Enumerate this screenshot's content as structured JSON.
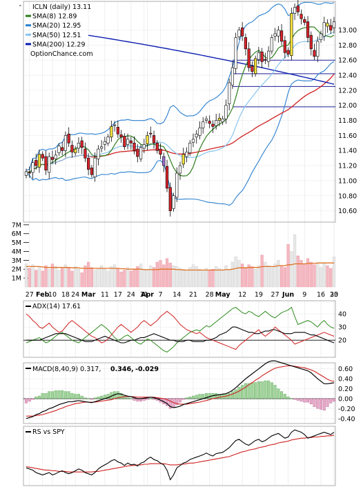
{
  "chart_data": {
    "type": "candlestick",
    "price_panel": {
      "legend": [
        {
          "label": "ICLN (daily) 13.11",
          "color": "#000000"
        },
        {
          "label": "SMA(8) 12.89",
          "color": "#2e7d1e"
        },
        {
          "label": "SMA(20) 12.95",
          "color": "#2a7fd0"
        },
        {
          "label": "SMA(50) 12.51",
          "color": "#86c4ee"
        },
        {
          "label": "SMA(200) 12.29",
          "color": "#0b1db0"
        }
      ],
      "watermark": "OptionChance.com",
      "y_ticks": [
        "13.00",
        "12.80",
        "12.60",
        "12.40",
        "12.20",
        "12.00",
        "11.80",
        "11.60",
        "11.40",
        "11.20",
        "11.00",
        "10.80",
        "10.60"
      ],
      "ylim": [
        10.45,
        13.38
      ],
      "close_prices": [
        11.12,
        11.1,
        11.24,
        11.2,
        11.35,
        11.3,
        11.14,
        11.32,
        11.28,
        11.34,
        11.46,
        11.4,
        11.6,
        11.5,
        11.38,
        11.42,
        11.5,
        11.44,
        11.3,
        11.15,
        11.08,
        11.3,
        11.42,
        11.45,
        11.52,
        11.58,
        11.72,
        11.74,
        11.62,
        11.58,
        11.45,
        11.55,
        11.5,
        11.4,
        11.32,
        11.44,
        11.48,
        11.6,
        11.62,
        11.5,
        11.4,
        11.35,
        11.2,
        10.9,
        10.6,
        10.8,
        11.1,
        11.2,
        11.35,
        11.38,
        11.5,
        11.55,
        11.62,
        11.7,
        11.78,
        11.82,
        11.76,
        11.72,
        11.8,
        11.8,
        11.82,
        12.0,
        12.3,
        12.5,
        12.9,
        13.0,
        12.92,
        12.75,
        12.5,
        12.45,
        12.62,
        12.7,
        12.58,
        12.6,
        12.72,
        12.9,
        12.95,
        13.0,
        12.85,
        12.7,
        12.68,
        13.22,
        13.3,
        13.24,
        13.15,
        13.1,
        12.9,
        12.75,
        12.65,
        12.85,
        12.95,
        13.1,
        13.05,
        13.0,
        13.11
      ],
      "horizontal_lines": [
        12.6,
        12.42,
        12.25,
        11.98
      ]
    },
    "volume_panel": {
      "y_ticks": [
        "7M",
        "6M",
        "5M",
        "4M",
        "3M",
        "2M",
        "1M"
      ],
      "ylim": [
        0,
        7.3
      ],
      "volume_millions": [
        2.6,
        2.1,
        2.5,
        1.9,
        2.2,
        1.8,
        2.4,
        2.0,
        2.6,
        2.3,
        1.9,
        2.1,
        2.5,
        2.2,
        1.8,
        2.3,
        2.0,
        1.6,
        2.4,
        2.8,
        2.2,
        1.9,
        2.1,
        2.4,
        2.0,
        1.8,
        2.3,
        2.5,
        2.1,
        1.7,
        1.9,
        2.2,
        1.8,
        2.0,
        2.3,
        2.6,
        2.0,
        1.9,
        2.4,
        2.2,
        2.8,
        3.0,
        2.5,
        3.2,
        2.7,
        2.4,
        2.3,
        2.1,
        2.0,
        1.9,
        2.2,
        2.5,
        2.3,
        2.0,
        1.8,
        2.1,
        1.9,
        2.0,
        2.3,
        2.1,
        1.8,
        2.4,
        2.0,
        2.8,
        3.4,
        3.0,
        2.6,
        2.2,
        2.5,
        2.3,
        2.0,
        2.4,
        3.6,
        2.8,
        2.4,
        2.2,
        2.6,
        3.0,
        2.4,
        2.2,
        4.8,
        4.0,
        5.9,
        3.5,
        3.0,
        2.6,
        3.2,
        2.8,
        2.5,
        2.7,
        2.2,
        2.6,
        2.4,
        2.1,
        3.4
      ],
      "volume_sma": [
        2.3,
        2.3,
        2.3,
        2.3,
        2.3,
        2.25,
        2.2,
        2.2,
        2.2,
        2.2,
        2.2,
        2.2,
        2.2,
        2.2,
        2.15,
        2.15,
        2.15,
        2.1,
        2.1,
        2.1,
        2.1,
        2.1,
        2.1,
        2.1,
        2.1,
        2.1,
        2.1,
        2.1,
        2.1,
        2.05,
        2.05,
        2.0,
        2.0,
        2.0,
        2.0,
        2.0,
        1.95,
        1.95,
        1.95,
        1.95,
        1.95,
        2.0,
        2.0,
        2.0,
        2.0,
        2.0,
        1.95,
        1.95,
        1.9,
        1.9,
        1.9,
        1.9,
        1.9,
        1.9,
        1.9,
        1.9,
        1.9,
        1.9,
        1.9,
        1.9,
        1.9,
        1.95,
        1.95,
        2.0,
        2.1,
        2.15,
        2.15,
        2.15,
        2.2,
        2.2,
        2.2,
        2.2,
        2.3,
        2.3,
        2.3,
        2.3,
        2.3,
        2.4,
        2.4,
        2.4,
        2.5,
        2.5,
        2.6,
        2.6,
        2.6,
        2.6,
        2.65,
        2.65,
        2.65,
        2.7,
        2.7,
        2.7,
        2.7,
        2.7,
        2.7
      ]
    },
    "x_ticks": [
      {
        "label": "27",
        "bar": 1
      },
      {
        "label": "Feb",
        "bar": 5,
        "bold": true
      },
      {
        "label": "10",
        "bar": 8
      },
      {
        "label": "18",
        "bar": 12
      },
      {
        "label": "24",
        "bar": 15
      },
      {
        "label": "Mar",
        "bar": 19,
        "bold": true
      },
      {
        "label": "11",
        "bar": 24
      },
      {
        "label": "17",
        "bar": 28
      },
      {
        "label": "24",
        "bar": 32
      },
      {
        "label": "31",
        "bar": 36
      },
      {
        "label": "Apr",
        "bar": 37,
        "bold": true
      },
      {
        "label": "7",
        "bar": 41
      },
      {
        "label": "14",
        "bar": 46
      },
      {
        "label": "21",
        "bar": 51
      },
      {
        "label": "28",
        "bar": 56
      },
      {
        "label": "May",
        "bar": 60,
        "bold": true
      },
      {
        "label": "12",
        "bar": 66
      },
      {
        "label": "19",
        "bar": 71
      },
      {
        "label": "27",
        "bar": 76
      },
      {
        "label": "Jun",
        "bar": 80,
        "bold": true
      },
      {
        "label": "9",
        "bar": 85
      },
      {
        "label": "16",
        "bar": 90
      },
      {
        "label": "23",
        "bar": 95
      },
      {
        "label": "30",
        "bar": 100
      }
    ],
    "adx_panel": {
      "legend": [
        {
          "label": "ADX(14) 17.61",
          "color": "#000000"
        }
      ],
      "y_ticks": [
        "40",
        "30",
        "20"
      ],
      "ylim": [
        7,
        50
      ],
      "adx": [
        20,
        20,
        20,
        20,
        20,
        21,
        22,
        23,
        24,
        25,
        25,
        25,
        25,
        24,
        23,
        22,
        21,
        20,
        19,
        19,
        19,
        20,
        21,
        22,
        23,
        22,
        21,
        20,
        19,
        18,
        18,
        19,
        20,
        20,
        21,
        22,
        22,
        23,
        24,
        25,
        24,
        23,
        22,
        21,
        20,
        20,
        19,
        19,
        19,
        20,
        20,
        19,
        19,
        19,
        19,
        20,
        20,
        21,
        22,
        24,
        25,
        26,
        28,
        30,
        30,
        29,
        28,
        27,
        26,
        26,
        25,
        25,
        26,
        27,
        27,
        28,
        28,
        27,
        26,
        25,
        25,
        25,
        26,
        26,
        26,
        26,
        25,
        24,
        24,
        23,
        22,
        21,
        20,
        19,
        18
      ],
      "plus_di": [
        18,
        19,
        20,
        21,
        22,
        20,
        18,
        19,
        21,
        23,
        25,
        26,
        24,
        22,
        20,
        19,
        18,
        20,
        22,
        24,
        26,
        28,
        30,
        32,
        30,
        28,
        25,
        22,
        20,
        21,
        23,
        24,
        22,
        20,
        18,
        17,
        19,
        21,
        20,
        18,
        16,
        14,
        12,
        11,
        13,
        15,
        18,
        20,
        22,
        24,
        26,
        27,
        28,
        27,
        29,
        31,
        30,
        32,
        34,
        36,
        38,
        40,
        42,
        44,
        45,
        43,
        41,
        40,
        42,
        41,
        39,
        38,
        40,
        42,
        40,
        38,
        37,
        39,
        41,
        42,
        43,
        45,
        38,
        32,
        33,
        34,
        35,
        34,
        32,
        30,
        33,
        35,
        32,
        30,
        29
      ],
      "minus_di": [
        40,
        38,
        35,
        33,
        30,
        29,
        31,
        33,
        30,
        28,
        26,
        27,
        30,
        33,
        35,
        33,
        31,
        29,
        27,
        25,
        23,
        22,
        20,
        18,
        19,
        21,
        24,
        27,
        30,
        32,
        30,
        28,
        26,
        28,
        30,
        33,
        35,
        33,
        31,
        33,
        35,
        38,
        40,
        42,
        40,
        38,
        35,
        32,
        30,
        28,
        27,
        26,
        25,
        26,
        24,
        22,
        21,
        20,
        19,
        18,
        17,
        16,
        15,
        14,
        13,
        16,
        18,
        20,
        22,
        24,
        26,
        28,
        25,
        23,
        25,
        27,
        30,
        28,
        26,
        24,
        22,
        20,
        17,
        18,
        19,
        20,
        21,
        22,
        23,
        24,
        25,
        26,
        25,
        24,
        23
      ]
    },
    "macd_panel": {
      "legend": [
        {
          "label": "MACD(8,40,9) 0.317,",
          "color": "#000000"
        },
        {
          "label": "0.346,",
          "color": "#d10000"
        },
        {
          "label": "-0.029",
          "color": "#1a3ecf"
        }
      ],
      "y_ticks": [
        "0.60",
        "0.40",
        "0.20",
        "0.00",
        "-0.20",
        "-0.40"
      ],
      "ylim": [
        -0.5,
        0.72
      ],
      "macd": [
        -0.4,
        -0.38,
        -0.36,
        -0.32,
        -0.3,
        -0.26,
        -0.24,
        -0.2,
        -0.18,
        -0.15,
        -0.12,
        -0.1,
        -0.08,
        -0.06,
        -0.06,
        -0.05,
        -0.04,
        -0.05,
        -0.06,
        -0.07,
        -0.08,
        -0.06,
        -0.04,
        -0.02,
        0.0,
        0.02,
        0.05,
        0.08,
        0.1,
        0.09,
        0.07,
        0.05,
        0.04,
        0.02,
        0.0,
        0.0,
        0.01,
        0.02,
        0.03,
        0.02,
        0.0,
        -0.03,
        -0.06,
        -0.1,
        -0.16,
        -0.18,
        -0.17,
        -0.15,
        -0.12,
        -0.1,
        -0.08,
        -0.06,
        -0.04,
        -0.02,
        0.0,
        0.02,
        0.04,
        0.06,
        0.07,
        0.08,
        0.09,
        0.1,
        0.13,
        0.17,
        0.22,
        0.28,
        0.34,
        0.4,
        0.45,
        0.5,
        0.55,
        0.6,
        0.65,
        0.7,
        0.74,
        0.76,
        0.76,
        0.74,
        0.72,
        0.7,
        0.68,
        0.66,
        0.64,
        0.62,
        0.6,
        0.58,
        0.56,
        0.52,
        0.46,
        0.4,
        0.35,
        0.3,
        0.3,
        0.31,
        0.32
      ],
      "signal": [
        -0.35,
        -0.35,
        -0.35,
        -0.34,
        -0.33,
        -0.32,
        -0.3,
        -0.28,
        -0.26,
        -0.24,
        -0.21,
        -0.19,
        -0.16,
        -0.14,
        -0.12,
        -0.1,
        -0.09,
        -0.08,
        -0.07,
        -0.07,
        -0.07,
        -0.07,
        -0.06,
        -0.05,
        -0.04,
        -0.03,
        -0.02,
        0.0,
        0.02,
        0.03,
        0.04,
        0.04,
        0.04,
        0.04,
        0.03,
        0.03,
        0.03,
        0.03,
        0.03,
        0.03,
        0.02,
        0.01,
        0.0,
        -0.02,
        -0.05,
        -0.08,
        -0.1,
        -0.11,
        -0.11,
        -0.11,
        -0.1,
        -0.09,
        -0.08,
        -0.07,
        -0.05,
        -0.04,
        -0.02,
        0.0,
        0.01,
        0.03,
        0.04,
        0.05,
        0.07,
        0.09,
        0.12,
        0.15,
        0.19,
        0.23,
        0.28,
        0.32,
        0.37,
        0.41,
        0.46,
        0.5,
        0.54,
        0.58,
        0.61,
        0.63,
        0.64,
        0.65,
        0.66,
        0.66,
        0.65,
        0.64,
        0.63,
        0.62,
        0.6,
        0.58,
        0.55,
        0.51,
        0.47,
        0.43,
        0.39,
        0.36,
        0.35
      ]
    },
    "rs_panel": {
      "legend": [
        {
          "label": "RS vs SPY",
          "color": "#000000"
        }
      ],
      "rs": [
        0.3,
        0.28,
        0.26,
        0.22,
        0.2,
        0.18,
        0.2,
        0.22,
        0.18,
        0.2,
        0.23,
        0.25,
        0.22,
        0.2,
        0.22,
        0.25,
        0.28,
        0.26,
        0.22,
        0.2,
        0.18,
        0.22,
        0.28,
        0.32,
        0.35,
        0.38,
        0.42,
        0.44,
        0.4,
        0.38,
        0.34,
        0.38,
        0.35,
        0.36,
        0.33,
        0.38,
        0.4,
        0.45,
        0.48,
        0.44,
        0.42,
        0.38,
        0.35,
        0.26,
        0.1,
        0.18,
        0.3,
        0.34,
        0.38,
        0.4,
        0.44,
        0.46,
        0.48,
        0.5,
        0.52,
        0.55,
        0.52,
        0.5,
        0.54,
        0.55,
        0.56,
        0.6,
        0.64,
        0.7,
        0.76,
        0.78,
        0.74,
        0.7,
        0.68,
        0.72,
        0.76,
        0.78,
        0.74,
        0.76,
        0.8,
        0.84,
        0.86,
        0.88,
        0.84,
        0.8,
        0.82,
        0.9,
        0.94,
        0.92,
        0.9,
        0.86,
        0.8,
        0.82,
        0.84,
        0.86,
        0.88,
        0.9,
        0.88,
        0.86,
        0.9
      ],
      "rs_sma": [
        0.32,
        0.31,
        0.3,
        0.29,
        0.28,
        0.27,
        0.26,
        0.26,
        0.25,
        0.25,
        0.24,
        0.24,
        0.24,
        0.23,
        0.23,
        0.23,
        0.23,
        0.23,
        0.23,
        0.23,
        0.23,
        0.24,
        0.24,
        0.25,
        0.26,
        0.27,
        0.28,
        0.29,
        0.3,
        0.31,
        0.32,
        0.33,
        0.34,
        0.34,
        0.35,
        0.35,
        0.36,
        0.36,
        0.37,
        0.37,
        0.37,
        0.37,
        0.37,
        0.36,
        0.35,
        0.35,
        0.35,
        0.36,
        0.36,
        0.37,
        0.38,
        0.38,
        0.39,
        0.4,
        0.41,
        0.42,
        0.43,
        0.44,
        0.45,
        0.46,
        0.47,
        0.48,
        0.49,
        0.51,
        0.53,
        0.55,
        0.57,
        0.58,
        0.6,
        0.61,
        0.62,
        0.64,
        0.65,
        0.66,
        0.68,
        0.69,
        0.7,
        0.72,
        0.73,
        0.74,
        0.75,
        0.77,
        0.78,
        0.79,
        0.8,
        0.8,
        0.81,
        0.81,
        0.82,
        0.82,
        0.83,
        0.83,
        0.84,
        0.84,
        0.85
      ]
    }
  }
}
